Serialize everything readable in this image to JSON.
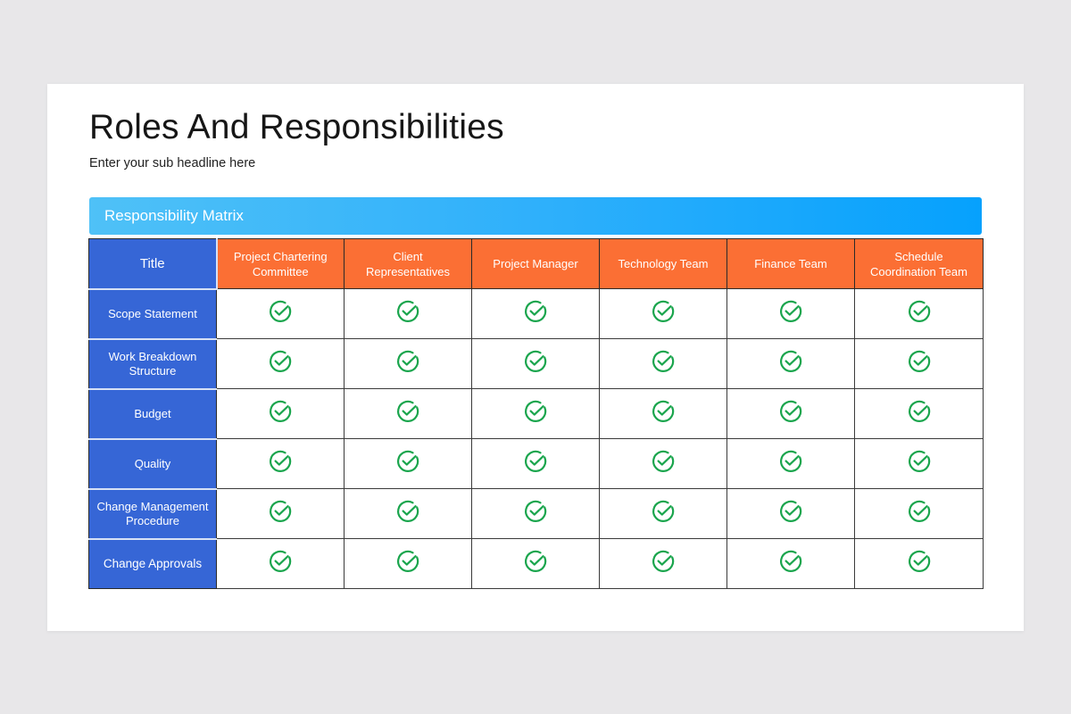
{
  "slide": {
    "title": "Roles And Responsibilities",
    "subtitle": "Enter your sub headline here",
    "matrix_label": "Responsibility Matrix"
  },
  "colors": {
    "header_bar": "#2fb0fb",
    "column_header": "#fb6f34",
    "row_header": "#3666d6",
    "check": "#1aa54d"
  },
  "table": {
    "corner": "Title",
    "columns": [
      "Project Chartering Committee",
      "Client Representatives",
      "Project Manager",
      "Technology Team",
      "Finance Team",
      "Schedule Coordination Team"
    ],
    "rows": [
      {
        "label": "Scope Statement",
        "cells": [
          "check-icon",
          "check-icon",
          "check-icon",
          "check-icon",
          "check-icon",
          "check-icon"
        ]
      },
      {
        "label": "Work Breakdown Structure",
        "cells": [
          "check-icon",
          "check-icon",
          "check-icon",
          "check-icon",
          "check-icon",
          "check-icon"
        ]
      },
      {
        "label": "Budget",
        "cells": [
          "check-icon",
          "check-icon",
          "check-icon",
          "check-icon",
          "check-icon",
          "check-icon"
        ]
      },
      {
        "label": "Quality",
        "cells": [
          "check-icon",
          "check-icon",
          "check-icon",
          "check-icon",
          "check-icon",
          "check-icon"
        ]
      },
      {
        "label": "Change Management Procedure",
        "cells": [
          "check-icon",
          "check-icon",
          "check-icon",
          "check-icon",
          "check-icon",
          "check-icon"
        ]
      },
      {
        "label": "Change Approvals",
        "cells": [
          "check-icon",
          "check-icon",
          "check-icon",
          "check-icon",
          "check-icon",
          "check-icon"
        ]
      }
    ]
  }
}
